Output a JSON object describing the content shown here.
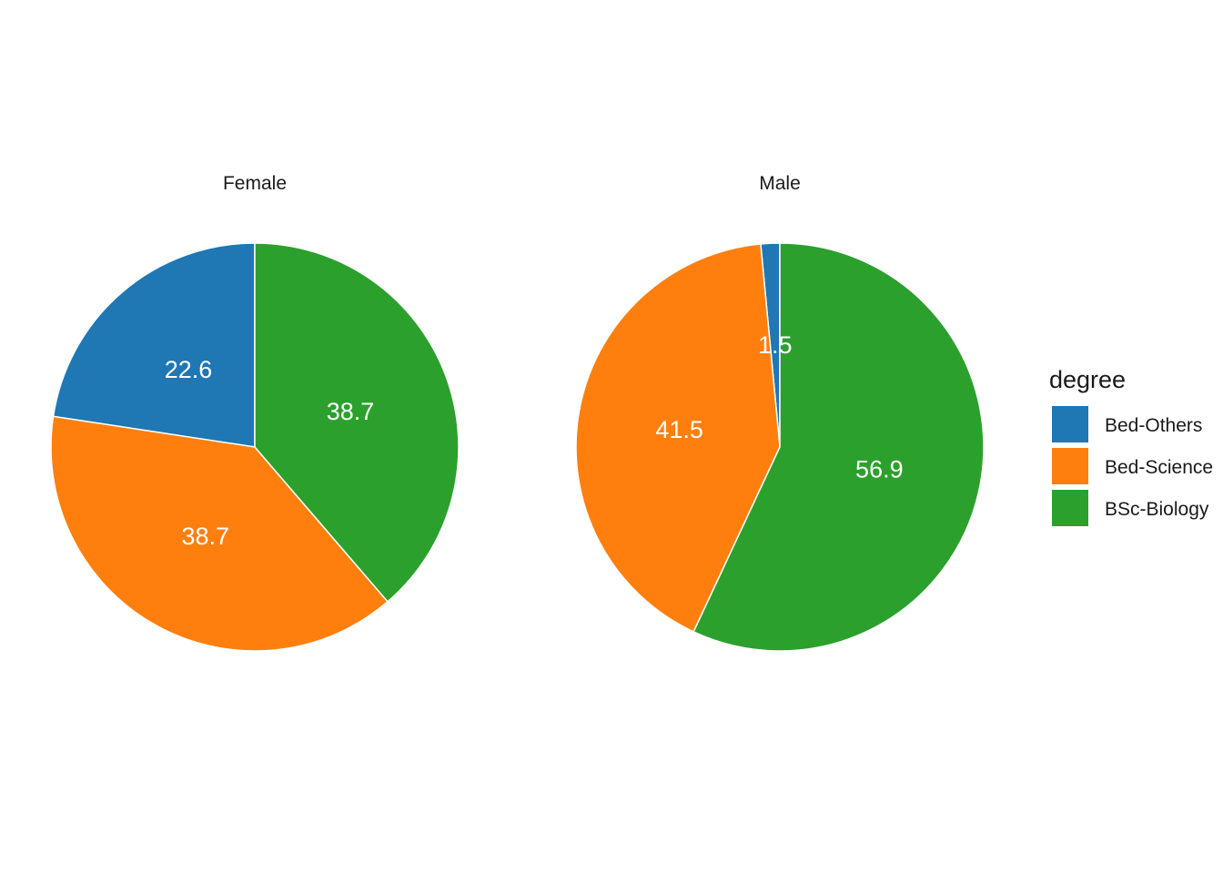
{
  "chart_data": {
    "type": "pie",
    "facets": [
      {
        "title": "Female",
        "slices": [
          {
            "category": "Bed-Others",
            "value": 22.6,
            "label": "22.6"
          },
          {
            "category": "Bed-Science",
            "value": 38.7,
            "label": "38.7"
          },
          {
            "category": "BSc-Biology",
            "value": 38.7,
            "label": "38.7"
          }
        ]
      },
      {
        "title": "Male",
        "slices": [
          {
            "category": "Bed-Others",
            "value": 1.5,
            "label": "1.5"
          },
          {
            "category": "Bed-Science",
            "value": 41.5,
            "label": "41.5"
          },
          {
            "category": "BSc-Biology",
            "value": 56.9,
            "label": "56.9"
          }
        ]
      }
    ],
    "legend": {
      "title": "degree",
      "position": "right",
      "items": [
        {
          "label": "Bed-Others",
          "color": "#1f77b4"
        },
        {
          "label": "Bed-Science",
          "color": "#ff7f0e"
        },
        {
          "label": "BSc-Biology",
          "color": "#2ca02c"
        }
      ]
    },
    "direction": "counter-clockwise from top"
  }
}
